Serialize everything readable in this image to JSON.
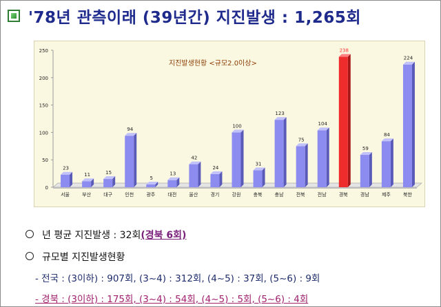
{
  "header": {
    "title": "'78년 관측이래 (39년간) 지진발생 : 1,265회",
    "icon": "green-square-bullet-icon"
  },
  "chart_data": {
    "type": "bar",
    "title": "지진발생현황 <규모2.0이상>",
    "categories": [
      "서울",
      "부산",
      "대구",
      "인천",
      "광주",
      "대전",
      "울산",
      "경기",
      "강원",
      "충북",
      "충남",
      "전북",
      "전남",
      "경북",
      "경남",
      "제주",
      "북한"
    ],
    "values": [
      23,
      11,
      15,
      94,
      5,
      13,
      42,
      24,
      100,
      31,
      123,
      75,
      104,
      238,
      59,
      84,
      224
    ],
    "highlight_category": "경북",
    "ylim": [
      0,
      250
    ],
    "yticks": [
      0,
      50,
      100,
      150,
      200,
      250
    ],
    "xlabel": "",
    "ylabel": "",
    "grid": false,
    "colors": {
      "bar": "#8c8cf0",
      "highlight": "#ee2c2c",
      "floor": "#bdbdbd",
      "title_text": "#8b3a00",
      "label_text": "#222222"
    }
  },
  "notes": {
    "avg_label": "년 평균 지진발생 : 32회",
    "avg_highlight": "(경북 6회)",
    "by_mag_label": "규모별 지진발생현황",
    "national": "- 전국 : (3이하) : 907회, (3~4) : 312회, (4~5) : 37회, (5~6) : 9회",
    "gyeongbuk": "- 경북 : (3이하) : 175회, (3~4) : 54회, (4~5) : 5회, (5~6) : 4회"
  }
}
